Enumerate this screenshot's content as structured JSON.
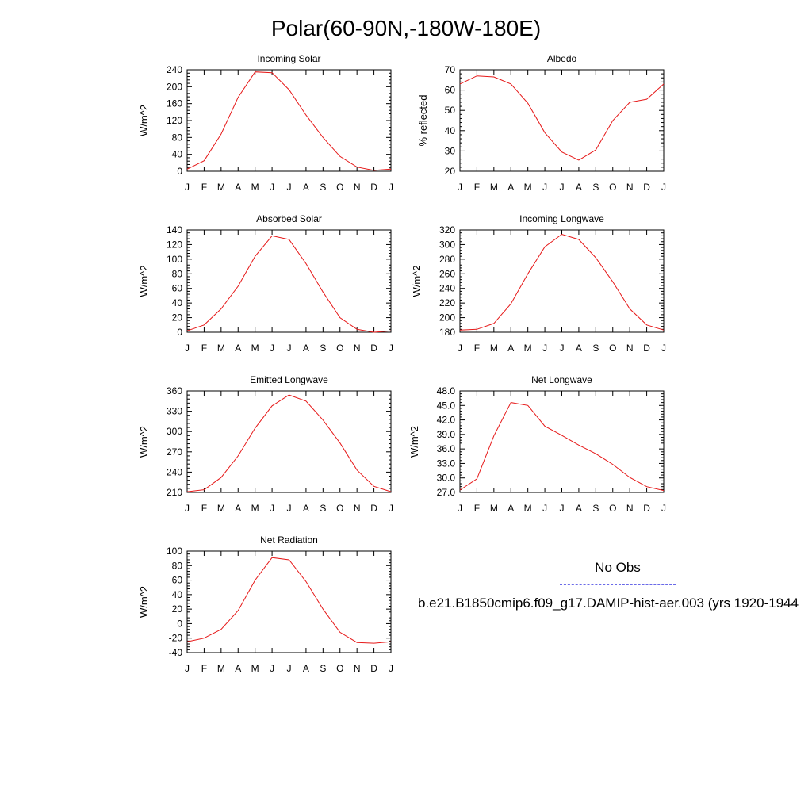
{
  "page": {
    "title": "Polar(60-90N,-180W-180E)"
  },
  "legend": {
    "obs_label": "No Obs",
    "model_label": "b.e21.B1850cmip6.f09_g17.DAMIP-hist-aer.003 (yrs 1920-1944",
    "model_color": "#e61919",
    "obs_color": "#6a6ae8"
  },
  "chart_data": [
    {
      "type": "line",
      "title": "Incoming Solar",
      "ylabel": "W/m^2",
      "categories": [
        "J",
        "F",
        "M",
        "A",
        "M",
        "J",
        "J",
        "A",
        "S",
        "O",
        "N",
        "D",
        "J"
      ],
      "ylim": [
        0,
        240
      ],
      "yticks": [
        "0",
        "40",
        "80",
        "120",
        "160",
        "200",
        "240"
      ],
      "values": [
        5,
        25,
        88,
        175,
        235,
        233,
        193,
        133,
        80,
        35,
        10,
        2,
        5
      ],
      "grid": false
    },
    {
      "type": "line",
      "title": "Albedo",
      "ylabel": "% reflected",
      "categories": [
        "J",
        "F",
        "M",
        "A",
        "M",
        "J",
        "J",
        "A",
        "S",
        "O",
        "N",
        "D",
        "J"
      ],
      "ylim": [
        20,
        70
      ],
      "yticks": [
        "20",
        "30",
        "40",
        "50",
        "60",
        "70"
      ],
      "values": [
        63,
        67,
        66.5,
        63,
        53.5,
        39,
        29.5,
        25.5,
        30.5,
        45,
        54,
        55.5,
        63
      ],
      "grid": false
    },
    {
      "type": "line",
      "title": "Absorbed Solar",
      "ylabel": "W/m^2",
      "categories": [
        "J",
        "F",
        "M",
        "A",
        "M",
        "J",
        "J",
        "A",
        "S",
        "O",
        "N",
        "D",
        "J"
      ],
      "ylim": [
        0,
        140
      ],
      "yticks": [
        "0",
        "20",
        "40",
        "60",
        "80",
        "100",
        "120",
        "140"
      ],
      "values": [
        2,
        10,
        32,
        63,
        104,
        132,
        127,
        94,
        55,
        20,
        4,
        0,
        2
      ],
      "grid": false
    },
    {
      "type": "line",
      "title": "Incoming Longwave",
      "ylabel": "W/m^2",
      "categories": [
        "J",
        "F",
        "M",
        "A",
        "M",
        "J",
        "J",
        "A",
        "S",
        "O",
        "N",
        "D",
        "J"
      ],
      "ylim": [
        180,
        320
      ],
      "yticks": [
        "180",
        "200",
        "220",
        "240",
        "260",
        "280",
        "300",
        "320"
      ],
      "values": [
        183,
        184,
        192,
        219,
        260,
        297,
        314,
        307,
        282,
        249,
        212,
        190,
        183
      ],
      "grid": false
    },
    {
      "type": "line",
      "title": "Emitted Longwave",
      "ylabel": "W/m^2",
      "categories": [
        "J",
        "F",
        "M",
        "A",
        "M",
        "J",
        "J",
        "A",
        "S",
        "O",
        "N",
        "D",
        "J"
      ],
      "ylim": [
        210,
        360
      ],
      "yticks": [
        "210",
        "240",
        "270",
        "300",
        "330",
        "360"
      ],
      "values": [
        211,
        214,
        232,
        264,
        305,
        338,
        354,
        345,
        317,
        283,
        243,
        219,
        211
      ],
      "grid": false
    },
    {
      "type": "line",
      "title": "Net Longwave",
      "ylabel": "W/m^2",
      "categories": [
        "J",
        "F",
        "M",
        "A",
        "M",
        "J",
        "J",
        "A",
        "S",
        "O",
        "N",
        "D",
        "J"
      ],
      "ylim": [
        27,
        48
      ],
      "yticks": [
        "27.0",
        "30.0",
        "33.0",
        "36.0",
        "39.0",
        "42.0",
        "45.0",
        "48.0"
      ],
      "values": [
        27.5,
        29.8,
        38.7,
        45.6,
        45.0,
        40.7,
        38.8,
        36.8,
        35.0,
        32.8,
        30.1,
        28.2,
        27.4
      ],
      "grid": false
    },
    {
      "type": "line",
      "title": "Net Radiation",
      "ylabel": "W/m^2",
      "categories": [
        "J",
        "F",
        "M",
        "A",
        "M",
        "J",
        "J",
        "A",
        "S",
        "O",
        "N",
        "D",
        "J"
      ],
      "ylim": [
        -40,
        100
      ],
      "yticks": [
        "-40",
        "-20",
        "0",
        "20",
        "40",
        "60",
        "80",
        "100"
      ],
      "values": [
        -25,
        -20,
        -8,
        18,
        60,
        91,
        88,
        58,
        20,
        -12,
        -26,
        -27,
        -25
      ],
      "grid": false
    }
  ]
}
